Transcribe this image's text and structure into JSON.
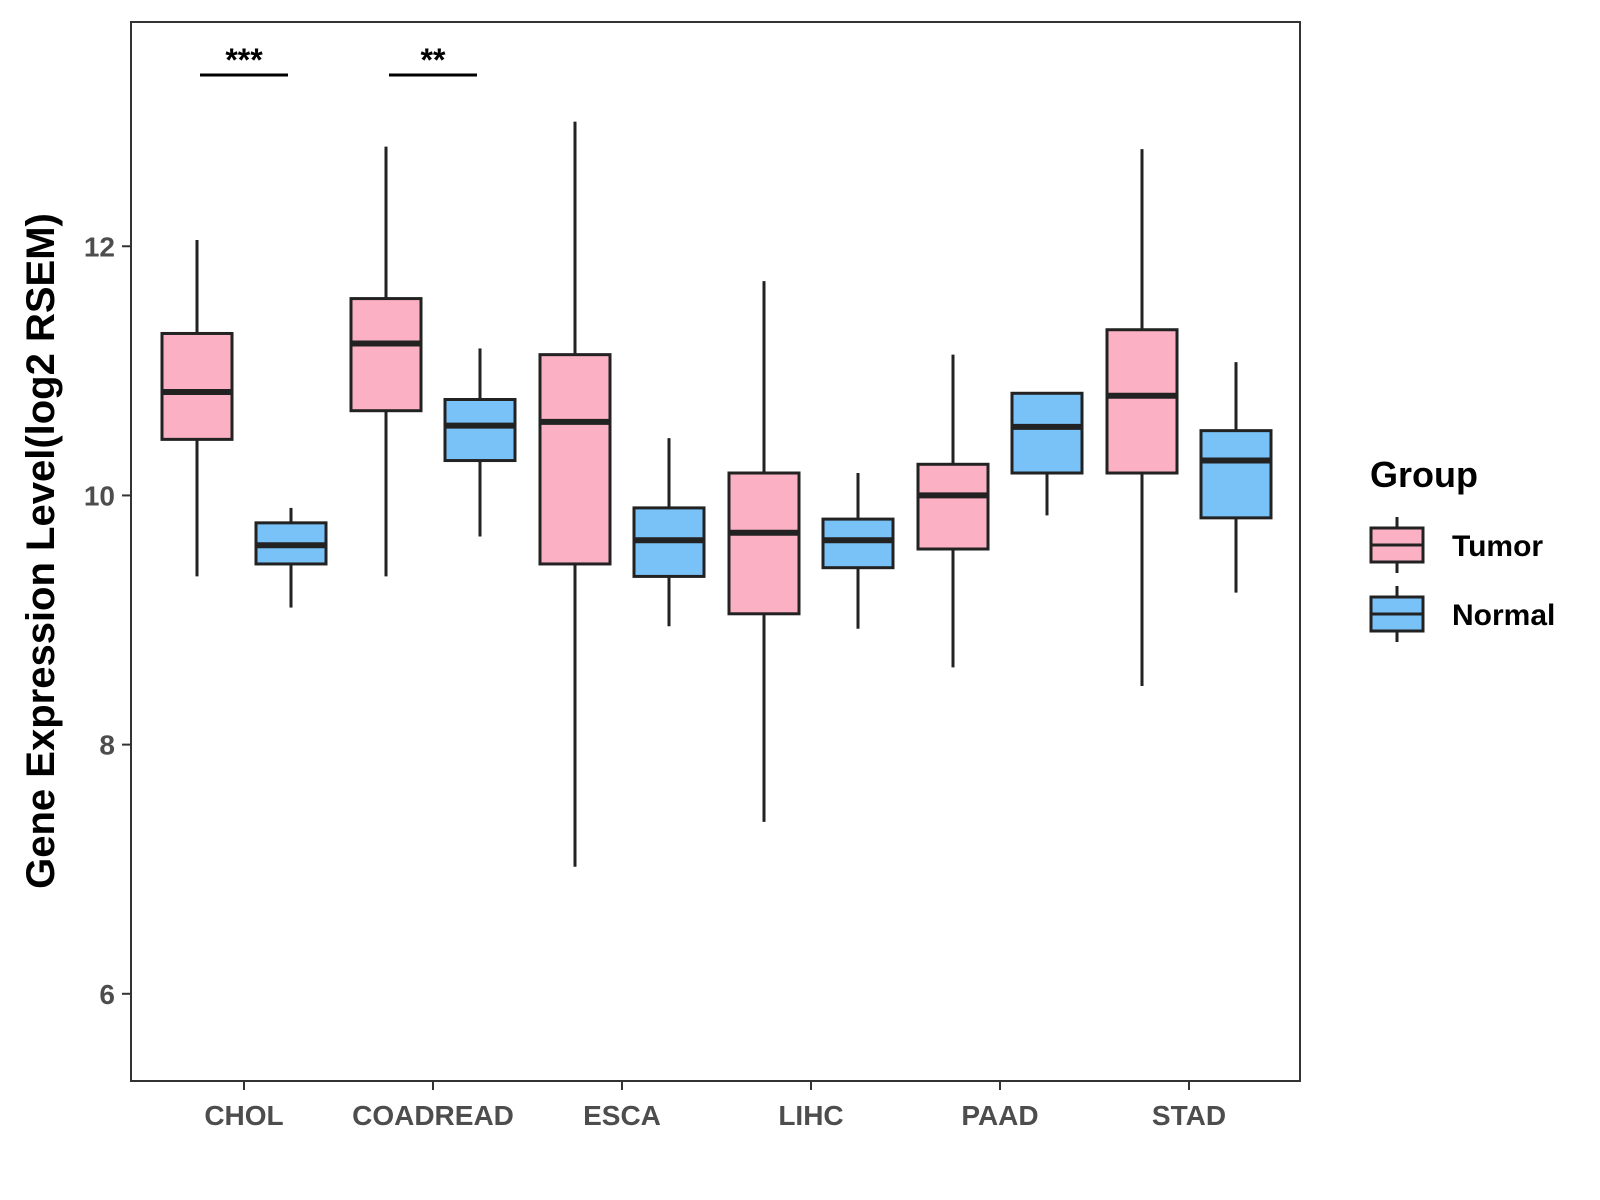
{
  "chart_data": {
    "type": "boxplot",
    "title": "",
    "xlabel": "",
    "ylabel": "Gene Expression Level(log2 RSEM)",
    "ylim": [
      5.3,
      13.8
    ],
    "yticks": [
      6,
      8,
      10,
      12
    ],
    "grid": false,
    "legend_position": "right",
    "legend_title": "Group",
    "categories": [
      "CHOL",
      "COADREAD",
      "ESCA",
      "LIHC",
      "PAAD",
      "STAD"
    ],
    "series": [
      {
        "name": "Tumor",
        "color": "#FBB1C3",
        "boxes": [
          {
            "min": 9.35,
            "q1": 10.45,
            "median": 10.83,
            "q3": 11.3,
            "max": 12.05
          },
          {
            "min": 9.35,
            "q1": 10.68,
            "median": 11.22,
            "q3": 11.58,
            "max": 12.8
          },
          {
            "min": 7.02,
            "q1": 9.45,
            "median": 10.59,
            "q3": 11.13,
            "max": 13.0
          },
          {
            "min": 7.38,
            "q1": 9.05,
            "median": 9.7,
            "q3": 10.18,
            "max": 11.72
          },
          {
            "min": 8.62,
            "q1": 9.57,
            "median": 10.0,
            "q3": 10.25,
            "max": 11.13
          },
          {
            "min": 8.47,
            "q1": 10.18,
            "median": 10.8,
            "q3": 11.33,
            "max": 12.78
          }
        ]
      },
      {
        "name": "Normal",
        "color": "#79C2F8",
        "boxes": [
          {
            "min": 9.1,
            "q1": 9.45,
            "median": 9.6,
            "q3": 9.78,
            "max": 9.9
          },
          {
            "min": 9.67,
            "q1": 10.28,
            "median": 10.56,
            "q3": 10.77,
            "max": 11.18
          },
          {
            "min": 8.95,
            "q1": 9.35,
            "median": 9.64,
            "q3": 9.9,
            "max": 10.46
          },
          {
            "min": 8.93,
            "q1": 9.42,
            "median": 9.64,
            "q3": 9.81,
            "max": 10.18
          },
          {
            "min": 9.84,
            "q1": 10.18,
            "median": 10.55,
            "q3": 10.82,
            "max": 10.83
          },
          {
            "min": 9.22,
            "q1": 9.82,
            "median": 10.28,
            "q3": 10.52,
            "max": 11.07
          }
        ]
      }
    ],
    "significance": [
      {
        "category": "CHOL",
        "label": "***"
      },
      {
        "category": "COADREAD",
        "label": "**"
      }
    ]
  }
}
